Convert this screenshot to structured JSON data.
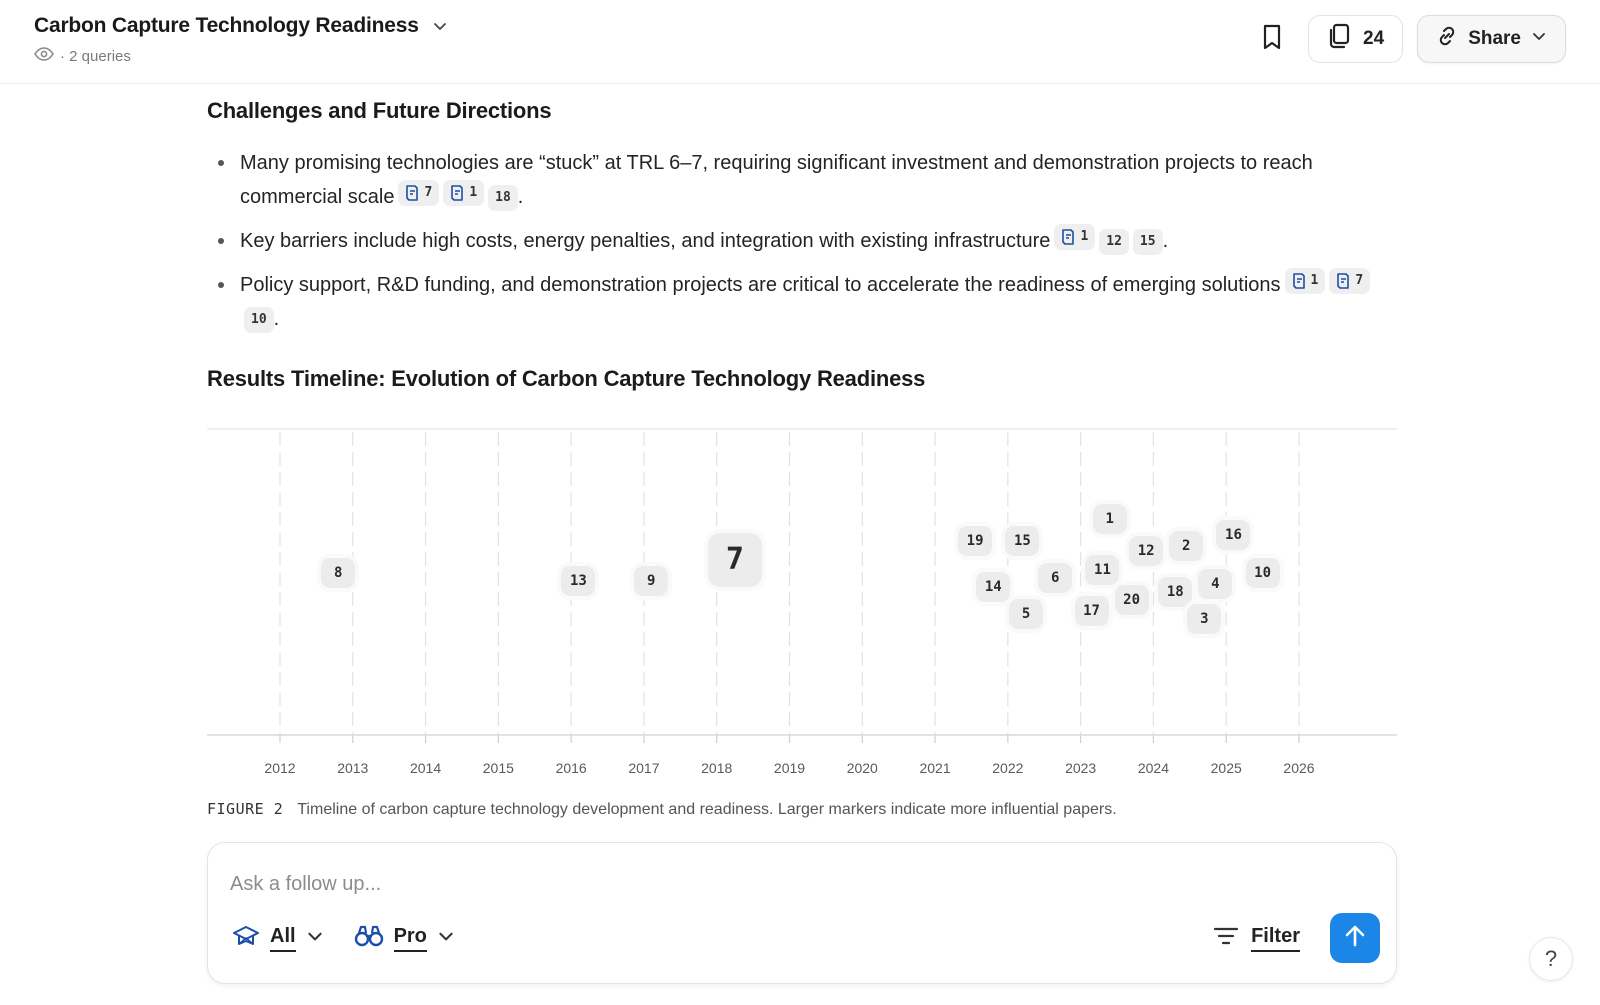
{
  "header": {
    "title": "Carbon Capture Technology Readiness",
    "subtitle": "· 2 queries",
    "sources_count": "24",
    "share_label": "Share"
  },
  "challenges": {
    "heading": "Challenges and Future Directions",
    "bullets": [
      {
        "text": "Many promising technologies are “stuck” at TRL 6–7, requiring significant investment and demonstration projects to reach commercial scale",
        "citations": [
          {
            "label": "7",
            "icon": "doc-icon"
          },
          {
            "label": "1",
            "icon": "doc-icon"
          },
          {
            "label": "18"
          }
        ]
      },
      {
        "text": "Key barriers include high costs, energy penalties, and integration with existing infrastructure",
        "citations": [
          {
            "label": "1",
            "icon": "doc-icon"
          },
          {
            "label": "12"
          },
          {
            "label": "15"
          }
        ]
      },
      {
        "text": "Policy support, R&D funding, and demonstration projects are critical to accelerate the readiness of emerging solutions",
        "citations": [
          {
            "label": "1",
            "icon": "doc-icon"
          },
          {
            "label": "7",
            "icon": "doc-icon"
          },
          {
            "label": "10"
          }
        ]
      }
    ]
  },
  "timeline": {
    "heading": "Results Timeline: Evolution of Carbon Capture Technology Readiness",
    "caption_fig": "FIGURE 2",
    "caption_text": "Timeline of carbon capture technology development and readiness. Larger markers indicate more influential papers."
  },
  "chart_data": {
    "type": "scatter",
    "title": "Results Timeline: Evolution of Carbon Capture Technology Readiness",
    "xlabel": "",
    "ylabel": "",
    "xlim": [
      2011,
      2027
    ],
    "x_ticks": [
      2012,
      2013,
      2014,
      2015,
      2016,
      2017,
      2018,
      2019,
      2020,
      2021,
      2022,
      2023,
      2024,
      2025,
      2026
    ],
    "grid": "vertical",
    "note": "Vertical placement is jitter only; marker size reflects influence",
    "points": [
      {
        "label": "8",
        "x": 2012.8,
        "jitter": 0.5,
        "size": "small"
      },
      {
        "label": "13",
        "x": 2016.1,
        "jitter": 0.47,
        "size": "small"
      },
      {
        "label": "9",
        "x": 2017.1,
        "jitter": 0.47,
        "size": "small"
      },
      {
        "label": "7",
        "x": 2018.25,
        "jitter": 0.55,
        "size": "large"
      },
      {
        "label": "19",
        "x": 2021.55,
        "jitter": 0.62,
        "size": "small"
      },
      {
        "label": "15",
        "x": 2022.2,
        "jitter": 0.62,
        "size": "small"
      },
      {
        "label": "14",
        "x": 2021.8,
        "jitter": 0.45,
        "size": "small"
      },
      {
        "label": "6",
        "x": 2022.65,
        "jitter": 0.48,
        "size": "small"
      },
      {
        "label": "5",
        "x": 2022.25,
        "jitter": 0.35,
        "size": "small"
      },
      {
        "label": "1",
        "x": 2023.4,
        "jitter": 0.7,
        "size": "small"
      },
      {
        "label": "11",
        "x": 2023.3,
        "jitter": 0.51,
        "size": "small"
      },
      {
        "label": "17",
        "x": 2023.15,
        "jitter": 0.36,
        "size": "small"
      },
      {
        "label": "12",
        "x": 2023.9,
        "jitter": 0.58,
        "size": "small"
      },
      {
        "label": "20",
        "x": 2023.7,
        "jitter": 0.4,
        "size": "small"
      },
      {
        "label": "2",
        "x": 2024.45,
        "jitter": 0.6,
        "size": "small"
      },
      {
        "label": "18",
        "x": 2024.3,
        "jitter": 0.43,
        "size": "small"
      },
      {
        "label": "4",
        "x": 2024.85,
        "jitter": 0.46,
        "size": "small"
      },
      {
        "label": "3",
        "x": 2024.7,
        "jitter": 0.33,
        "size": "small"
      },
      {
        "label": "16",
        "x": 2025.1,
        "jitter": 0.64,
        "size": "small"
      },
      {
        "label": "10",
        "x": 2025.5,
        "jitter": 0.5,
        "size": "small"
      }
    ]
  },
  "composer": {
    "placeholder": "Ask a follow up...",
    "source_mode": "All",
    "model_mode": "Pro",
    "filter_label": "Filter"
  },
  "help_label": "?"
}
